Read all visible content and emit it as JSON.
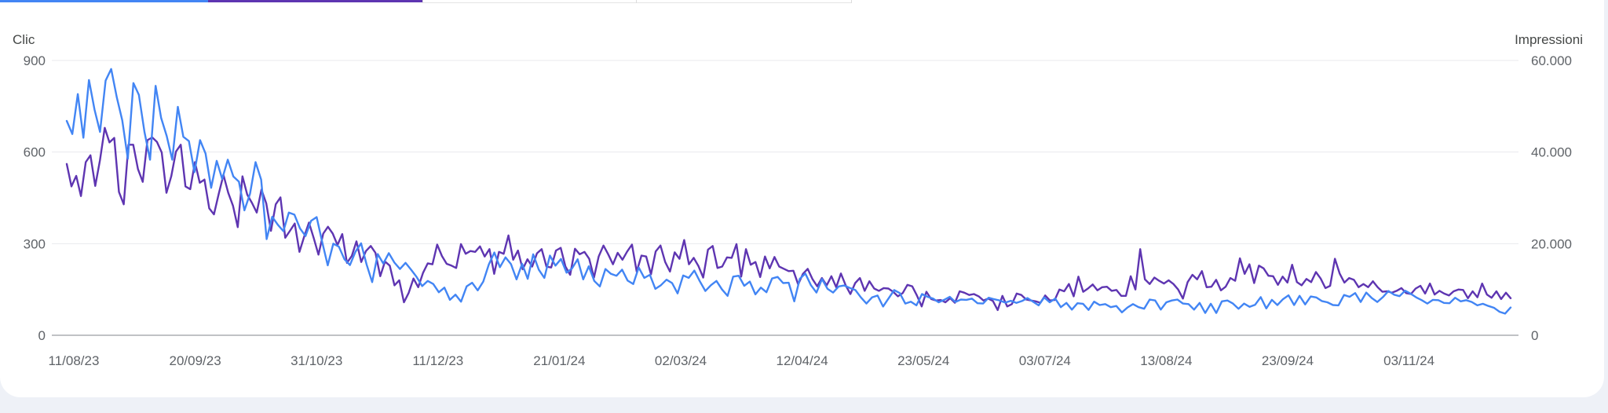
{
  "colors": {
    "clicks": "#4285f4",
    "impressions": "#5e35b1",
    "grid": "#e8eaed",
    "axis": "#80868b",
    "label": "#5f6368"
  },
  "chart_data": {
    "type": "line",
    "left_axis_title": "Clic",
    "right_axis_title": "Impressioni",
    "left_ylim": [
      0,
      900
    ],
    "right_ylim": [
      0,
      60000
    ],
    "left_ticks": [
      "900",
      "600",
      "300",
      "0"
    ],
    "right_ticks": [
      "60.000",
      "40.000",
      "20.000",
      "0"
    ],
    "x_tick_labels": [
      "11/08/23",
      "20/09/23",
      "31/10/23",
      "11/12/23",
      "21/01/24",
      "02/03/24",
      "12/04/24",
      "23/05/24",
      "03/07/24",
      "13/08/24",
      "23/09/24",
      "03/11/24"
    ],
    "grid": true,
    "series": [
      {
        "axis": "left",
        "color": "#4285f4",
        "x_range": [
          "11/08/23",
          "17/12/24"
        ],
        "values": [
          702,
          659,
          790,
          647,
          836,
          739,
          666,
          834,
          872,
          780,
          704,
          578,
          826,
          787,
          666,
          575,
          817,
          712,
          653,
          575,
          748,
          650,
          636,
          534,
          639,
          595,
          483,
          571,
          512,
          575,
          520,
          503,
          409,
          463,
          567,
          510,
          315,
          388,
          362,
          341,
          402,
          395,
          350,
          325,
          375,
          387,
          305,
          229,
          300,
          290,
          249,
          230,
          274,
          301,
          232,
          174,
          266,
          235,
          269,
          238,
          217,
          237,
          215,
          191,
          161,
          178,
          168,
          141,
          156,
          116,
          133,
          110,
          160,
          172,
          147,
          176,
          232,
          271,
          223,
          255,
          233,
          183,
          234,
          185,
          265,
          215,
          188,
          261,
          228,
          250,
          205,
          219,
          249,
          183,
          226,
          178,
          160,
          217,
          201,
          195,
          215,
          179,
          168,
          222,
          188,
          198,
          152,
          164,
          182,
          171,
          137,
          196,
          188,
          212,
          177,
          145,
          164,
          178,
          150,
          129,
          192,
          195,
          162,
          176,
          134,
          156,
          141,
          186,
          191,
          171,
          172,
          111,
          185,
          202,
          164,
          140,
          184,
          152,
          140,
          160,
          163,
          155,
          148,
          124,
          104,
          124,
          130,
          94,
          121,
          148,
          138,
          104,
          110,
          98,
          135,
          126,
          120,
          108,
          116,
          126,
          109,
          117,
          116,
          120,
          105,
          104,
          123,
          118,
          114,
          107,
          113,
          106,
          112,
          122,
          110,
          98,
          124,
          108,
          120,
          92,
          106,
          84,
          105,
          103,
          83,
          110,
          99,
          102,
          92,
          96,
          75,
          91,
          102,
          92,
          87,
          117,
          114,
          84,
          108,
          114,
          117,
          104,
          102,
          84,
          106,
          73,
          103,
          73,
          111,
          114,
          104,
          87,
          104,
          93,
          100,
          125,
          88,
          116,
          99,
          118,
          131,
          99,
          129,
          101,
          127,
          124,
          112,
          108,
          99,
          98,
          132,
          126,
          138,
          109,
          140,
          122,
          109,
          125,
          145,
          133,
          128,
          146,
          136,
          124,
          115,
          104,
          116,
          115,
          106,
          105,
          123,
          111,
          115,
          109,
          98,
          103,
          96,
          90,
          77,
          71,
          91
        ]
      },
      {
        "axis": "right",
        "color": "#5e35b1",
        "x_range": [
          "11/08/23",
          "17/12/24"
        ],
        "values": [
          37400,
          32500,
          34800,
          30400,
          37800,
          39300,
          32600,
          38200,
          45300,
          42100,
          43100,
          31300,
          28600,
          41600,
          41600,
          36300,
          33500,
          42600,
          43200,
          42200,
          39900,
          31100,
          34700,
          40100,
          41600,
          32500,
          31900,
          37800,
          33300,
          34000,
          27700,
          26400,
          30900,
          35000,
          31100,
          28300,
          23600,
          34700,
          30700,
          28900,
          26800,
          31800,
          28800,
          22800,
          28600,
          30100,
          21300,
          22800,
          24400,
          18200,
          21600,
          24600,
          21200,
          17600,
          22200,
          23700,
          22200,
          19700,
          22100,
          15800,
          17300,
          20500,
          16000,
          18400,
          19500,
          18000,
          12900,
          16100,
          15200,
          10900,
          12000,
          7200,
          9300,
          12400,
          10500,
          13600,
          15700,
          15500,
          19800,
          17300,
          15600,
          15200,
          14700,
          19900,
          17800,
          18400,
          18200,
          19400,
          17200,
          18800,
          13400,
          18200,
          17800,
          21800,
          16500,
          18500,
          14400,
          16600,
          15000,
          17900,
          18800,
          15000,
          14800,
          18500,
          19100,
          15000,
          13200,
          18900,
          17700,
          18200,
          16700,
          12600,
          17200,
          19600,
          17700,
          15500,
          18000,
          16500,
          18300,
          19800,
          13900,
          17400,
          17200,
          13300,
          18300,
          19600,
          16000,
          13900,
          18100,
          16700,
          20800,
          15500,
          16900,
          15100,
          12600,
          18700,
          19500,
          14700,
          15000,
          17000,
          16900,
          19900,
          12800,
          18800,
          15400,
          16000,
          12700,
          17200,
          14600,
          17100,
          15000,
          14500,
          14000,
          14100,
          11100,
          13400,
          14500,
          12300,
          10700,
          12500,
          10900,
          12900,
          10500,
          13500,
          10900,
          9000,
          11400,
          12500,
          9700,
          11800,
          10200,
          9700,
          10300,
          10200,
          9500,
          8500,
          9200,
          11000,
          10700,
          8700,
          6300,
          9500,
          7900,
          7600,
          7700,
          7200,
          8100,
          7100,
          9600,
          9300,
          8800,
          9000,
          8500,
          7600,
          8000,
          7500,
          5500,
          8600,
          6300,
          6800,
          9100,
          8800,
          7800,
          7600,
          7400,
          7100,
          8700,
          7600,
          7700,
          10000,
          9600,
          11200,
          8500,
          12800,
          9500,
          10200,
          11100,
          9800,
          10500,
          10600,
          9700,
          9900,
          8600,
          8600,
          12900,
          10000,
          18800,
          12200,
          11200,
          12600,
          11900,
          11300,
          12000,
          11200,
          10000,
          8000,
          11600,
          13200,
          12200,
          14000,
          10500,
          10600,
          12100,
          9800,
          10600,
          12500,
          11900,
          16800,
          13400,
          15500,
          11400,
          15200,
          14600,
          13000,
          12900,
          11000,
          12800,
          11500,
          15400,
          11600,
          10900,
          12300,
          11600,
          13800,
          12400,
          10300,
          10800,
          16700,
          13500,
          11500,
          12500,
          12100,
          10500,
          11200,
          10500,
          11800,
          10500,
          9500,
          9600,
          9300,
          9700,
          10300,
          9200,
          9000,
          10200,
          10800,
          9100,
          11300,
          8900,
          9700,
          9100,
          8700,
          9600,
          10000,
          9900,
          8100,
          9600,
          8300,
          11300,
          8900,
          8200,
          9600,
          7900,
          9300,
          8100
        ]
      }
    ]
  }
}
